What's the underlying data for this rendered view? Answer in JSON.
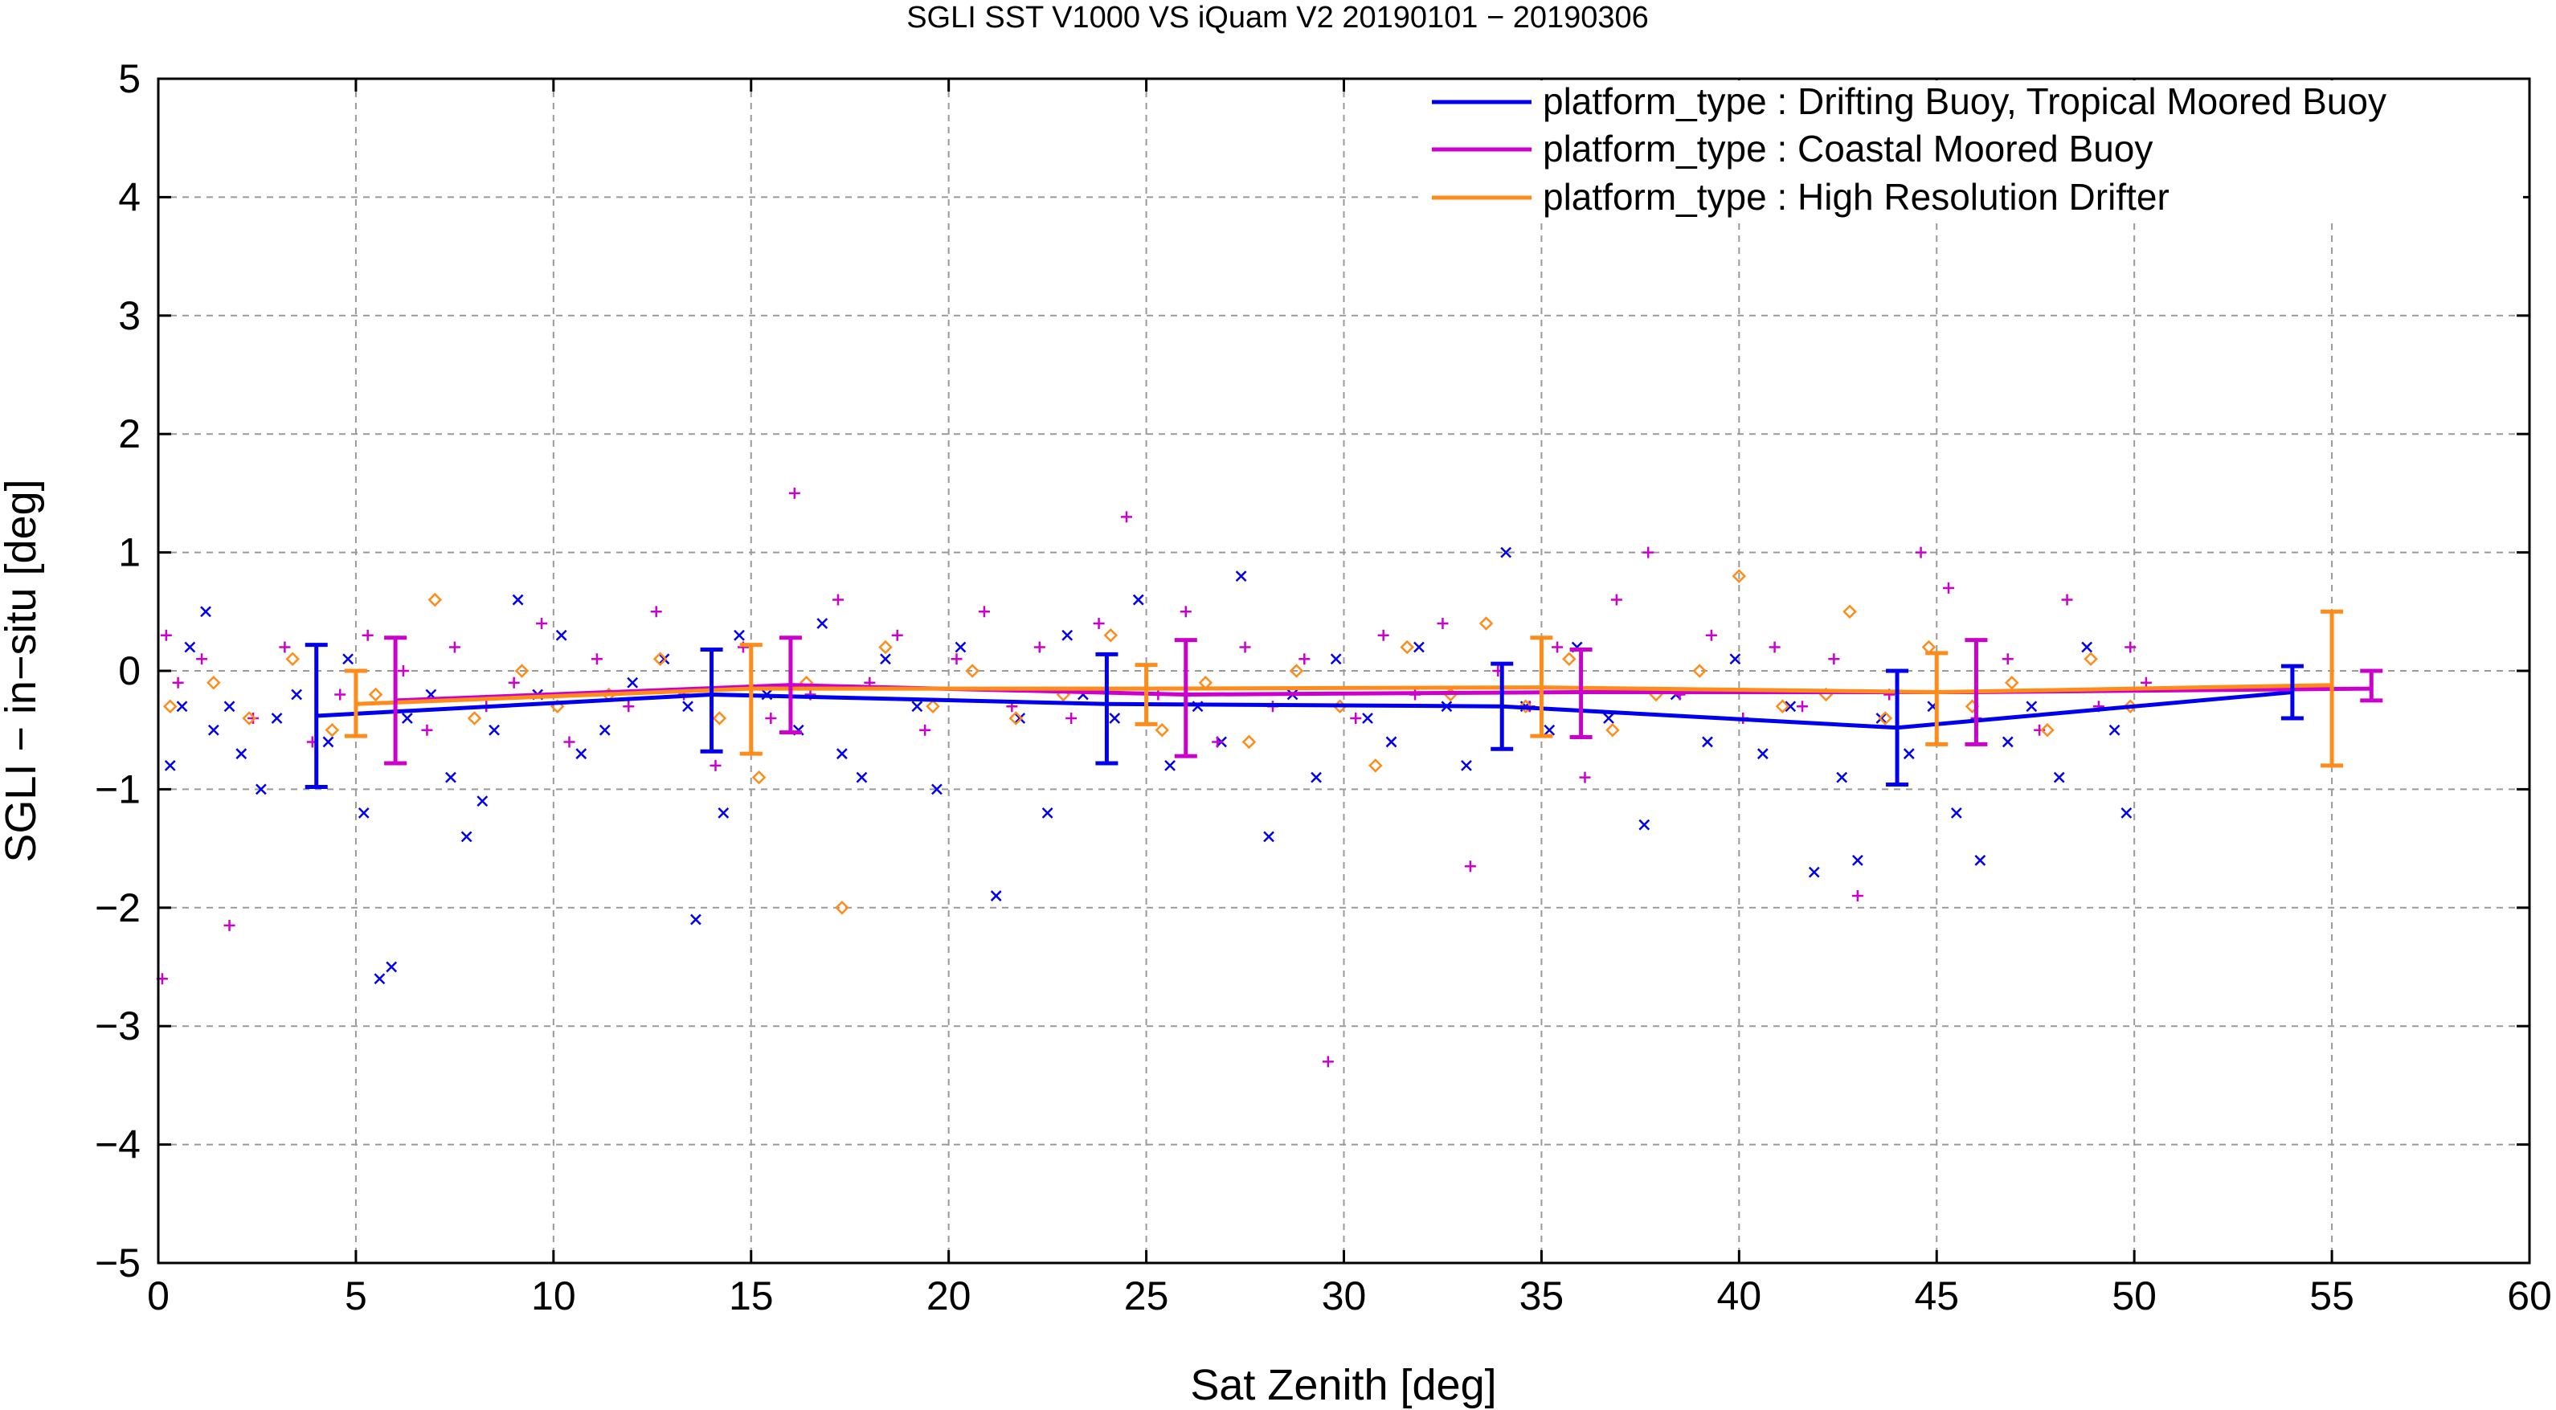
{
  "chart_data": {
    "type": "scatter",
    "title": "SGLI SST V1000 VS iQuam V2 20190101 − 20190306",
    "xlabel": "Sat Zenith [deg]",
    "ylabel": "SGLI − in−situ [deg]",
    "xlim": [
      0,
      60
    ],
    "ylim": [
      -5,
      5
    ],
    "x_ticks": [
      "0",
      "5",
      "10",
      "15",
      "20",
      "25",
      "30",
      "35",
      "40",
      "45",
      "50",
      "55",
      "60"
    ],
    "y_ticks": [
      "−5",
      "−4",
      "−3",
      "−2",
      "−1",
      "0",
      "1",
      "2",
      "3",
      "4",
      "5"
    ],
    "grid": true,
    "legend_position": "top-right",
    "series": [
      {
        "name": "platform_type : Drifting Buoy, Tropical Moored Buoy",
        "color": "#0000ee",
        "marker": "x",
        "mean_line": {
          "x": [
            4,
            14,
            24,
            34,
            44,
            54
          ],
          "y": [
            -0.38,
            -0.2,
            -0.28,
            -0.3,
            -0.48,
            -0.18
          ]
        },
        "error_bars": [
          {
            "x": 4,
            "lo": -0.98,
            "hi": 0.22
          },
          {
            "x": 14,
            "lo": -0.68,
            "hi": 0.18
          },
          {
            "x": 24,
            "lo": -0.78,
            "hi": 0.14
          },
          {
            "x": 34,
            "lo": -0.66,
            "hi": 0.06
          },
          {
            "x": 44,
            "lo": -0.96,
            "hi": 0.0
          },
          {
            "x": 54,
            "lo": -0.4,
            "hi": 0.04
          }
        ],
        "points": [
          [
            0.3,
            -0.8
          ],
          [
            0.6,
            -0.3
          ],
          [
            0.8,
            0.2
          ],
          [
            1.2,
            0.5
          ],
          [
            1.4,
            -0.5
          ],
          [
            1.8,
            -0.3
          ],
          [
            2.1,
            -0.7
          ],
          [
            2.6,
            -1.0
          ],
          [
            3.0,
            -0.4
          ],
          [
            3.5,
            -0.2
          ],
          [
            4.3,
            -0.6
          ],
          [
            4.8,
            0.1
          ],
          [
            5.2,
            -1.2
          ],
          [
            5.6,
            -2.6
          ],
          [
            5.9,
            -2.5
          ],
          [
            6.3,
            -0.4
          ],
          [
            6.9,
            -0.2
          ],
          [
            7.4,
            -0.9
          ],
          [
            7.8,
            -1.4
          ],
          [
            8.2,
            -1.1
          ],
          [
            8.5,
            -0.5
          ],
          [
            9.1,
            0.6
          ],
          [
            9.6,
            -0.2
          ],
          [
            10.2,
            0.3
          ],
          [
            10.7,
            -0.7
          ],
          [
            11.3,
            -0.5
          ],
          [
            12.0,
            -0.1
          ],
          [
            12.8,
            0.1
          ],
          [
            13.4,
            -0.3
          ],
          [
            13.6,
            -2.1
          ],
          [
            14.3,
            -1.2
          ],
          [
            14.7,
            0.3
          ],
          [
            15.4,
            -0.2
          ],
          [
            16.2,
            -0.5
          ],
          [
            16.8,
            0.4
          ],
          [
            17.3,
            -0.7
          ],
          [
            17.8,
            -0.9
          ],
          [
            18.4,
            0.1
          ],
          [
            19.2,
            -0.3
          ],
          [
            19.7,
            -1.0
          ],
          [
            20.3,
            0.2
          ],
          [
            21.2,
            -1.9
          ],
          [
            21.8,
            -0.4
          ],
          [
            22.5,
            -1.2
          ],
          [
            23.0,
            0.3
          ],
          [
            23.4,
            -0.2
          ],
          [
            24.2,
            -0.4
          ],
          [
            24.8,
            0.6
          ],
          [
            25.6,
            -0.8
          ],
          [
            26.3,
            -0.3
          ],
          [
            26.9,
            -0.6
          ],
          [
            27.4,
            0.8
          ],
          [
            28.1,
            -1.4
          ],
          [
            28.7,
            -0.2
          ],
          [
            29.3,
            -0.9
          ],
          [
            29.8,
            0.1
          ],
          [
            30.6,
            -0.4
          ],
          [
            31.2,
            -0.6
          ],
          [
            31.9,
            0.2
          ],
          [
            32.6,
            -0.3
          ],
          [
            33.1,
            -0.8
          ],
          [
            34.1,
            1.0
          ],
          [
            34.6,
            -0.3
          ],
          [
            35.2,
            -0.5
          ],
          [
            35.9,
            0.2
          ],
          [
            36.7,
            -0.4
          ],
          [
            37.6,
            -1.3
          ],
          [
            38.4,
            -0.2
          ],
          [
            39.2,
            -0.6
          ],
          [
            39.9,
            0.1
          ],
          [
            40.6,
            -0.7
          ],
          [
            41.3,
            -0.3
          ],
          [
            41.9,
            -1.7
          ],
          [
            42.6,
            -0.9
          ],
          [
            43.0,
            -1.6
          ],
          [
            43.6,
            -0.4
          ],
          [
            44.3,
            -0.7
          ],
          [
            44.9,
            -0.3
          ],
          [
            45.5,
            -1.2
          ],
          [
            46.1,
            -1.6
          ],
          [
            46.8,
            -0.6
          ],
          [
            47.4,
            -0.3
          ],
          [
            48.1,
            -0.9
          ],
          [
            48.8,
            0.2
          ],
          [
            49.5,
            -0.5
          ],
          [
            49.8,
            -1.2
          ]
        ]
      },
      {
        "name": "platform_type : Coastal Moored Buoy",
        "color": "#cc00cc",
        "marker": "+",
        "mean_line": {
          "x": [
            6,
            16,
            26,
            36,
            46,
            56
          ],
          "y": [
            -0.25,
            -0.12,
            -0.2,
            -0.18,
            -0.18,
            -0.15
          ]
        },
        "error_bars": [
          {
            "x": 6,
            "lo": -0.78,
            "hi": 0.28
          },
          {
            "x": 16,
            "lo": -0.52,
            "hi": 0.28
          },
          {
            "x": 26,
            "lo": -0.72,
            "hi": 0.26
          },
          {
            "x": 36,
            "lo": -0.56,
            "hi": 0.18
          },
          {
            "x": 46,
            "lo": -0.62,
            "hi": 0.26
          },
          {
            "x": 56,
            "lo": -0.25,
            "hi": 0.0
          }
        ],
        "points": [
          [
            0.1,
            -2.6
          ],
          [
            0.2,
            0.3
          ],
          [
            0.5,
            -0.1
          ],
          [
            1.1,
            0.1
          ],
          [
            1.8,
            -2.15
          ],
          [
            2.4,
            -0.4
          ],
          [
            3.2,
            0.2
          ],
          [
            3.9,
            -0.6
          ],
          [
            4.6,
            -0.2
          ],
          [
            5.3,
            0.3
          ],
          [
            6.2,
            0.0
          ],
          [
            6.8,
            -0.5
          ],
          [
            7.5,
            0.2
          ],
          [
            8.3,
            -0.3
          ],
          [
            9.0,
            -0.1
          ],
          [
            9.7,
            0.4
          ],
          [
            10.4,
            -0.6
          ],
          [
            11.1,
            0.1
          ],
          [
            11.9,
            -0.3
          ],
          [
            12.6,
            0.5
          ],
          [
            13.3,
            -0.2
          ],
          [
            14.1,
            -0.8
          ],
          [
            14.8,
            0.2
          ],
          [
            15.5,
            -0.4
          ],
          [
            16.1,
            1.5
          ],
          [
            16.5,
            -0.2
          ],
          [
            17.2,
            0.6
          ],
          [
            18.0,
            -0.1
          ],
          [
            18.7,
            0.3
          ],
          [
            19.4,
            -0.5
          ],
          [
            20.2,
            0.1
          ],
          [
            20.9,
            0.5
          ],
          [
            21.6,
            -0.3
          ],
          [
            22.3,
            0.2
          ],
          [
            23.1,
            -0.4
          ],
          [
            23.8,
            0.4
          ],
          [
            24.5,
            1.3
          ],
          [
            25.3,
            -0.2
          ],
          [
            26.0,
            0.5
          ],
          [
            26.8,
            -0.6
          ],
          [
            27.5,
            0.2
          ],
          [
            28.2,
            -0.3
          ],
          [
            29.0,
            0.1
          ],
          [
            29.6,
            -3.3
          ],
          [
            30.3,
            -0.4
          ],
          [
            31.0,
            0.3
          ],
          [
            31.8,
            -0.2
          ],
          [
            32.5,
            0.4
          ],
          [
            33.2,
            -1.65
          ],
          [
            33.9,
            0.0
          ],
          [
            34.7,
            -0.3
          ],
          [
            35.4,
            0.2
          ],
          [
            36.1,
            -0.9
          ],
          [
            36.9,
            0.6
          ],
          [
            37.7,
            1.0
          ],
          [
            38.5,
            -0.2
          ],
          [
            39.3,
            0.3
          ],
          [
            40.1,
            -0.4
          ],
          [
            40.9,
            0.2
          ],
          [
            41.6,
            -0.3
          ],
          [
            42.4,
            0.1
          ],
          [
            43.0,
            -1.9
          ],
          [
            43.8,
            -0.2
          ],
          [
            44.6,
            1.0
          ],
          [
            45.3,
            0.7
          ],
          [
            46.0,
            -0.4
          ],
          [
            46.8,
            0.1
          ],
          [
            47.6,
            -0.5
          ],
          [
            48.3,
            0.6
          ],
          [
            49.1,
            -0.3
          ],
          [
            49.9,
            0.2
          ],
          [
            50.3,
            -0.1
          ]
        ]
      },
      {
        "name": "platform_type : High Resolution Drifter",
        "color": "#ff8c1a",
        "marker": "diamond",
        "mean_line": {
          "x": [
            5,
            15,
            25,
            35,
            45,
            55
          ],
          "y": [
            -0.28,
            -0.15,
            -0.15,
            -0.14,
            -0.18,
            -0.12
          ]
        },
        "error_bars": [
          {
            "x": 5,
            "lo": -0.55,
            "hi": 0.0
          },
          {
            "x": 15,
            "lo": -0.7,
            "hi": 0.22
          },
          {
            "x": 25,
            "lo": -0.45,
            "hi": 0.05
          },
          {
            "x": 35,
            "lo": -0.55,
            "hi": 0.28
          },
          {
            "x": 45,
            "lo": -0.62,
            "hi": 0.15
          },
          {
            "x": 55,
            "lo": -0.8,
            "hi": 0.5
          }
        ],
        "points": [
          [
            0.3,
            -0.3
          ],
          [
            1.4,
            -0.1
          ],
          [
            2.3,
            -0.4
          ],
          [
            3.4,
            0.1
          ],
          [
            4.4,
            -0.5
          ],
          [
            5.5,
            -0.2
          ],
          [
            7.0,
            0.6
          ],
          [
            8.0,
            -0.4
          ],
          [
            9.2,
            0.0
          ],
          [
            10.1,
            -0.3
          ],
          [
            11.4,
            -0.2
          ],
          [
            12.7,
            0.1
          ],
          [
            14.2,
            -0.4
          ],
          [
            15.2,
            -0.9
          ],
          [
            16.4,
            -0.1
          ],
          [
            17.3,
            -2.0
          ],
          [
            18.4,
            0.2
          ],
          [
            19.6,
            -0.3
          ],
          [
            20.6,
            0.0
          ],
          [
            21.7,
            -0.4
          ],
          [
            22.9,
            -0.2
          ],
          [
            24.1,
            0.3
          ],
          [
            25.4,
            -0.5
          ],
          [
            26.5,
            -0.1
          ],
          [
            27.6,
            -0.6
          ],
          [
            28.8,
            0.0
          ],
          [
            29.9,
            -0.3
          ],
          [
            30.8,
            -0.8
          ],
          [
            31.6,
            0.2
          ],
          [
            32.7,
            -0.2
          ],
          [
            33.6,
            0.4
          ],
          [
            34.6,
            -0.3
          ],
          [
            35.7,
            0.1
          ],
          [
            36.8,
            -0.5
          ],
          [
            37.9,
            -0.2
          ],
          [
            39.0,
            0.0
          ],
          [
            40.0,
            0.8
          ],
          [
            41.1,
            -0.3
          ],
          [
            42.2,
            -0.2
          ],
          [
            42.8,
            0.5
          ],
          [
            43.7,
            -0.4
          ],
          [
            44.8,
            0.2
          ],
          [
            45.9,
            -0.3
          ],
          [
            46.9,
            -0.1
          ],
          [
            47.8,
            -0.5
          ],
          [
            48.9,
            0.1
          ],
          [
            49.9,
            -0.3
          ]
        ]
      }
    ]
  }
}
